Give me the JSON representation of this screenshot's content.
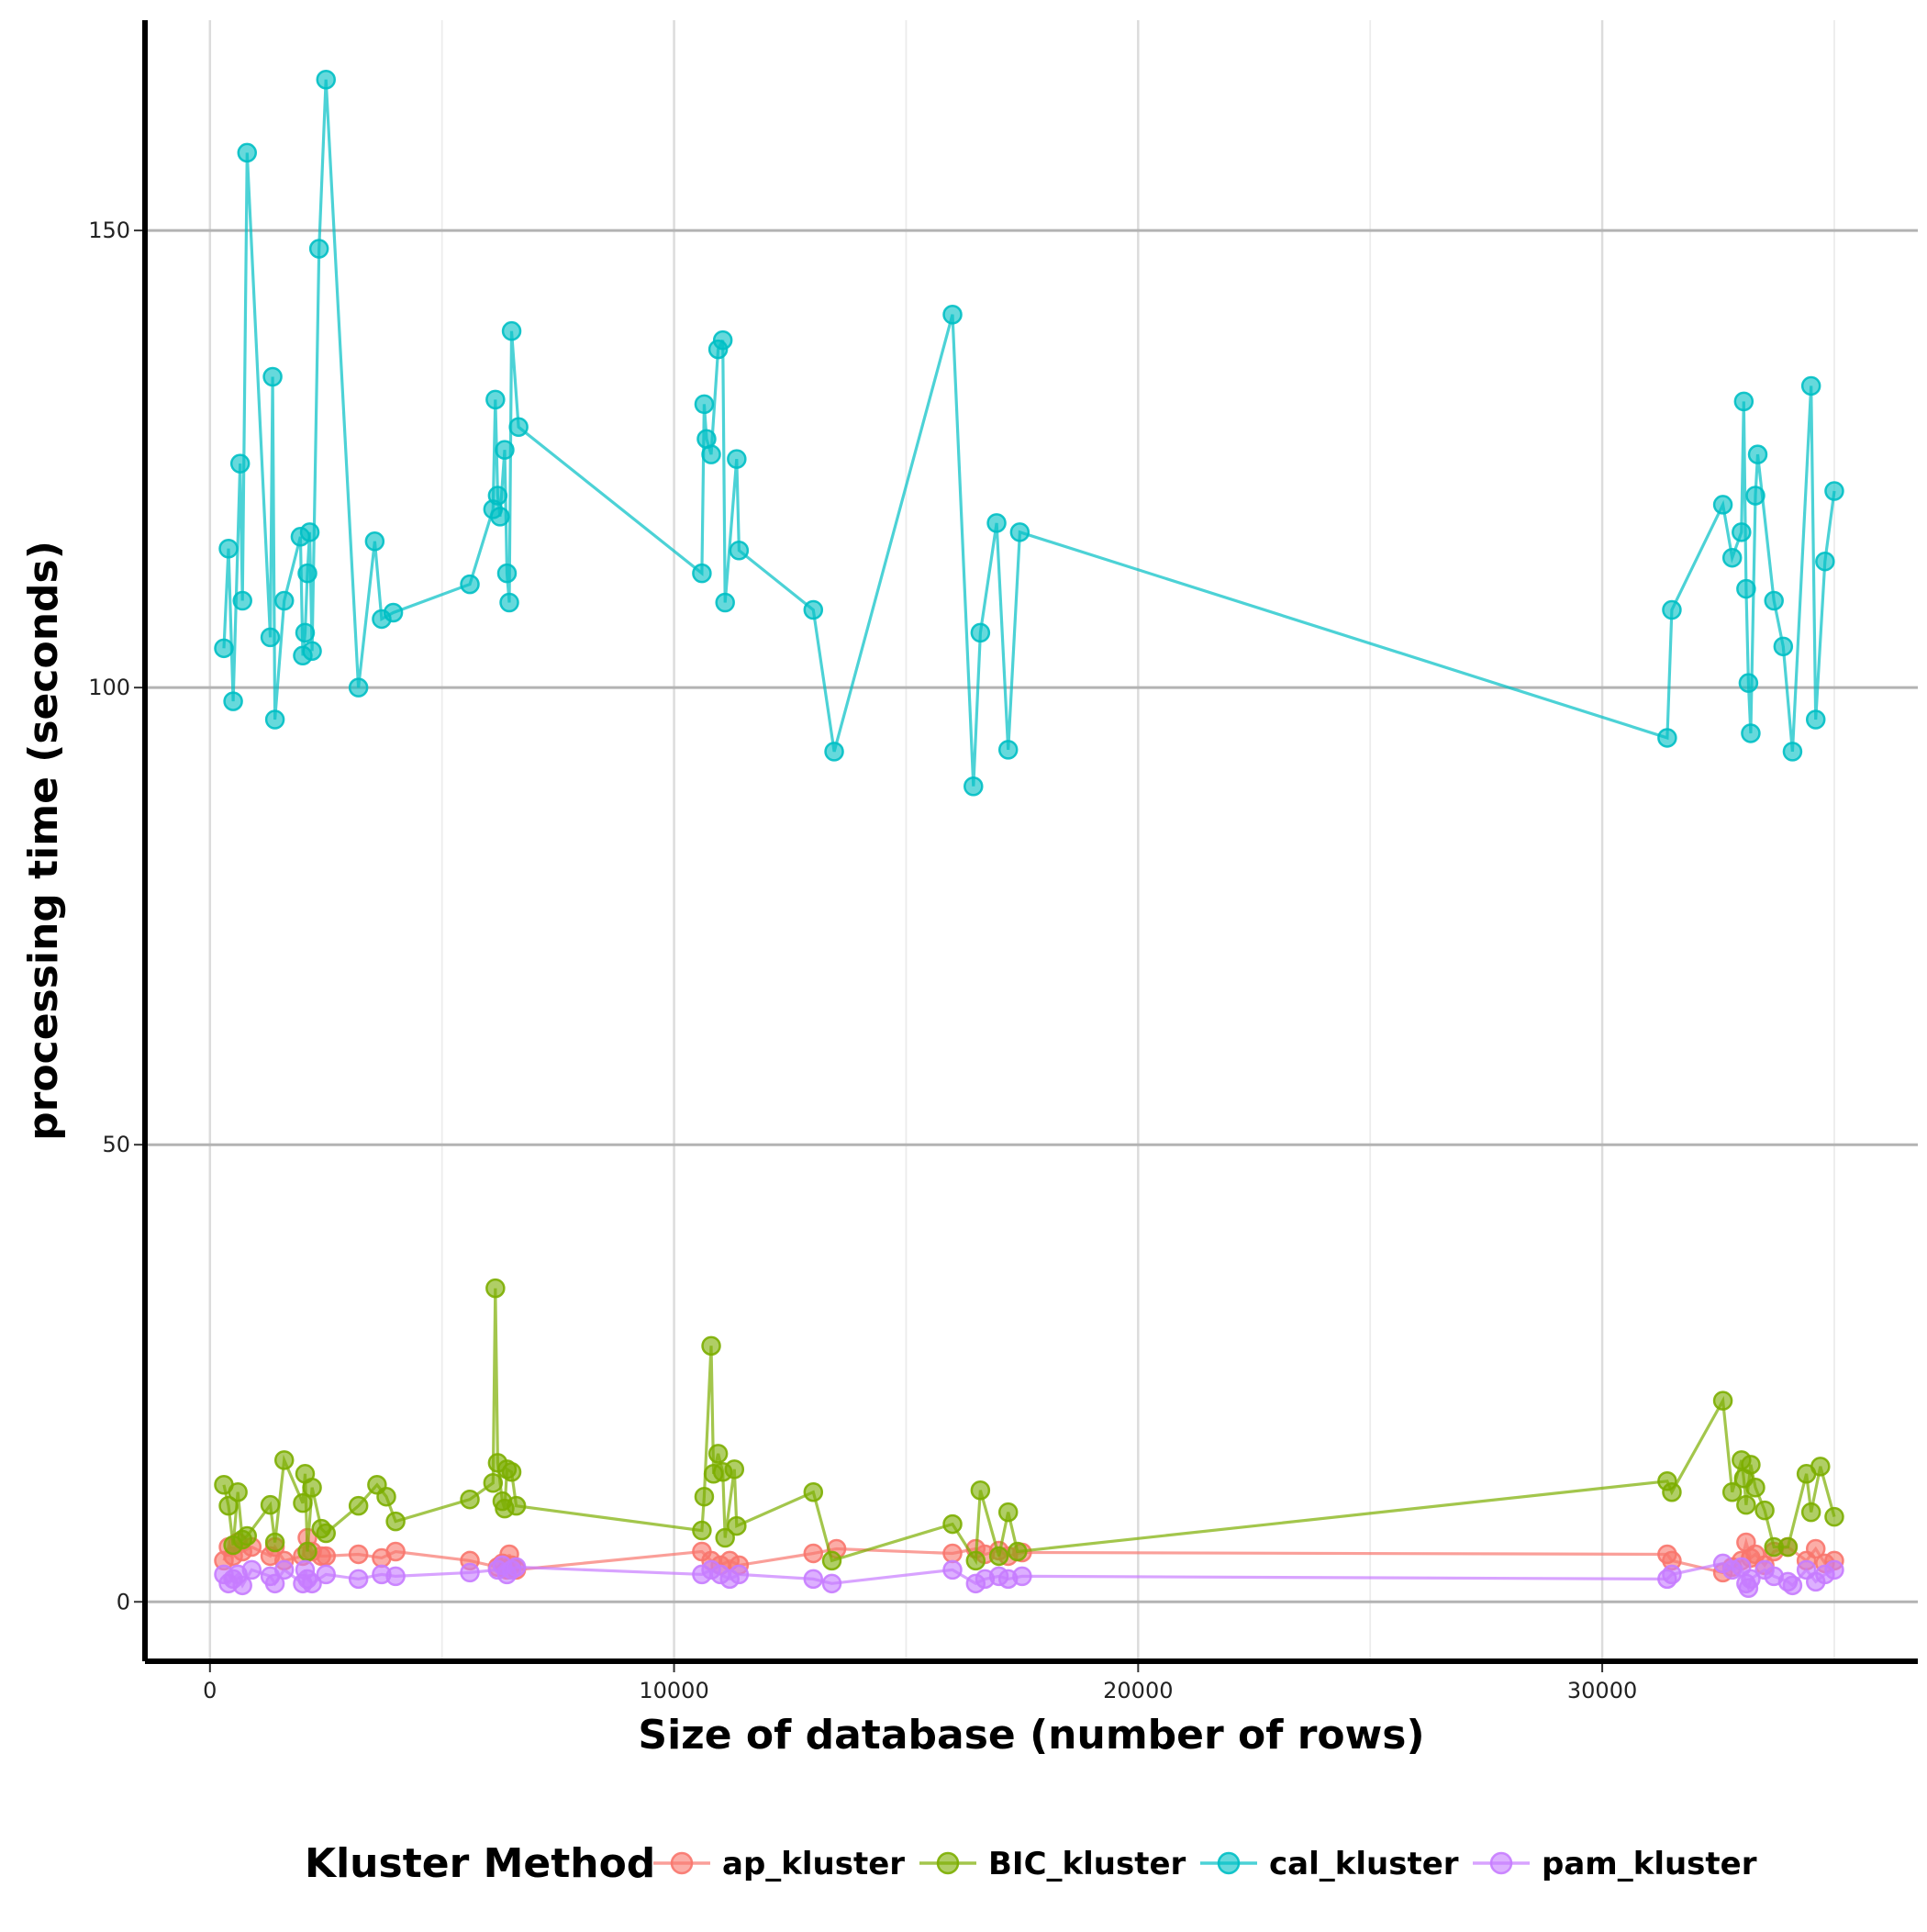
{
  "chart_data": {
    "type": "line",
    "xlabel": "Size of database (number of rows)",
    "ylabel": "processing time (seconds)",
    "xlim": [
      -1400,
      36800
    ],
    "ylim": [
      -6.5,
      173
    ],
    "x_ticks": [
      0,
      10000,
      20000,
      30000
    ],
    "y_ticks": [
      0,
      50,
      100,
      150
    ],
    "grid": true,
    "legend": {
      "title": "Kluster Method",
      "position": "bottom"
    },
    "series": [
      {
        "name": "ap_kluster",
        "color": "#F8766D",
        "points": [
          [
            300,
            4.5
          ],
          [
            400,
            6
          ],
          [
            500,
            5
          ],
          [
            600,
            6.5
          ],
          [
            700,
            5.5
          ],
          [
            900,
            6
          ],
          [
            1300,
            5
          ],
          [
            1400,
            6
          ],
          [
            1600,
            4.5
          ],
          [
            2000,
            5
          ],
          [
            2100,
            7
          ],
          [
            2200,
            5.5
          ],
          [
            2400,
            5
          ],
          [
            2500,
            5
          ],
          [
            3200,
            5.2
          ],
          [
            3700,
            4.8
          ],
          [
            4000,
            5.5
          ],
          [
            5600,
            4.5
          ],
          [
            6200,
            3.8
          ],
          [
            6300,
            4.2
          ],
          [
            6400,
            3.5
          ],
          [
            6450,
            5.2
          ],
          [
            6500,
            4
          ],
          [
            6600,
            3.5
          ],
          [
            10600,
            5.5
          ],
          [
            10800,
            4.5
          ],
          [
            11000,
            4
          ],
          [
            11200,
            4.5
          ],
          [
            11400,
            4
          ],
          [
            13000,
            5.3
          ],
          [
            13500,
            5.8
          ],
          [
            16000,
            5.3
          ],
          [
            16500,
            5.8
          ],
          [
            16700,
            5.2
          ],
          [
            17000,
            5.6
          ],
          [
            17200,
            5
          ],
          [
            17500,
            5.4
          ],
          [
            31400,
            5.2
          ],
          [
            31500,
            4.5
          ],
          [
            32600,
            3.2
          ],
          [
            32800,
            3.8
          ],
          [
            33000,
            4.5
          ],
          [
            33100,
            6.5
          ],
          [
            33200,
            4.8
          ],
          [
            33300,
            5.2
          ],
          [
            33500,
            4
          ],
          [
            33700,
            5.5
          ],
          [
            34000,
            6
          ],
          [
            34400,
            4.5
          ],
          [
            34600,
            5.8
          ],
          [
            34800,
            4.2
          ],
          [
            35000,
            4.5
          ]
        ]
      },
      {
        "name": "BIC_kluster",
        "color": "#7CAE00",
        "points": [
          [
            300,
            12.8
          ],
          [
            400,
            10.5
          ],
          [
            500,
            6.2
          ],
          [
            600,
            12
          ],
          [
            700,
            6.8
          ],
          [
            800,
            7.2
          ],
          [
            1300,
            10.6
          ],
          [
            1400,
            6.5
          ],
          [
            1600,
            15.5
          ],
          [
            2000,
            10.8
          ],
          [
            2050,
            14
          ],
          [
            2100,
            5.5
          ],
          [
            2200,
            12.5
          ],
          [
            2400,
            8
          ],
          [
            2500,
            7.5
          ],
          [
            3200,
            10.5
          ],
          [
            3600,
            12.8
          ],
          [
            3800,
            11.5
          ],
          [
            4000,
            8.8
          ],
          [
            5600,
            11.2
          ],
          [
            6100,
            13
          ],
          [
            6150,
            34.3
          ],
          [
            6200,
            15.2
          ],
          [
            6300,
            11
          ],
          [
            6350,
            10.2
          ],
          [
            6400,
            14.5
          ],
          [
            6500,
            14.2
          ],
          [
            6600,
            10.5
          ],
          [
            10600,
            7.8
          ],
          [
            10650,
            11.5
          ],
          [
            10800,
            28
          ],
          [
            10850,
            14
          ],
          [
            10950,
            16.2
          ],
          [
            11050,
            14.2
          ],
          [
            11100,
            7
          ],
          [
            11300,
            14.5
          ],
          [
            11350,
            8.3
          ],
          [
            13000,
            12
          ],
          [
            13400,
            4.5
          ],
          [
            16000,
            8.5
          ],
          [
            16500,
            4.5
          ],
          [
            16600,
            12.2
          ],
          [
            17000,
            5
          ],
          [
            17200,
            9.8
          ],
          [
            17400,
            5.5
          ],
          [
            31400,
            13.2
          ],
          [
            31500,
            12
          ],
          [
            32600,
            22
          ],
          [
            32800,
            12
          ],
          [
            33000,
            15.5
          ],
          [
            33050,
            13.5
          ],
          [
            33100,
            10.6
          ],
          [
            33200,
            15
          ],
          [
            33300,
            12.5
          ],
          [
            33500,
            10
          ],
          [
            33700,
            6
          ],
          [
            34000,
            6
          ],
          [
            34400,
            14
          ],
          [
            34500,
            9.8
          ],
          [
            34700,
            14.8
          ],
          [
            35000,
            9.3
          ]
        ]
      },
      {
        "name": "cal_kluster",
        "color": "#00BFC4",
        "points": [
          [
            300,
            104.3
          ],
          [
            400,
            115.2
          ],
          [
            500,
            98.5
          ],
          [
            650,
            124.5
          ],
          [
            700,
            109.5
          ],
          [
            800,
            158.5
          ],
          [
            1300,
            105.5
          ],
          [
            1350,
            134
          ],
          [
            1400,
            96.5
          ],
          [
            1600,
            109.5
          ],
          [
            1950,
            116.5
          ],
          [
            2000,
            103.5
          ],
          [
            2050,
            106
          ],
          [
            2100,
            112.5
          ],
          [
            2150,
            117
          ],
          [
            2200,
            104
          ],
          [
            2350,
            148
          ],
          [
            2500,
            166.5
          ],
          [
            3200,
            100
          ],
          [
            3550,
            116
          ],
          [
            3700,
            107.5
          ],
          [
            3950,
            108.2
          ],
          [
            5600,
            111.3
          ],
          [
            6100,
            119.5
          ],
          [
            6150,
            131.5
          ],
          [
            6200,
            121
          ],
          [
            6250,
            118.7
          ],
          [
            6350,
            126
          ],
          [
            6400,
            112.5
          ],
          [
            6450,
            109.3
          ],
          [
            6500,
            139
          ],
          [
            6650,
            128.5
          ],
          [
            10600,
            112.5
          ],
          [
            10650,
            131
          ],
          [
            10700,
            127.2
          ],
          [
            10800,
            125.5
          ],
          [
            10950,
            137
          ],
          [
            11050,
            138
          ],
          [
            11100,
            109.3
          ],
          [
            11350,
            125
          ],
          [
            11400,
            115
          ],
          [
            13000,
            108.5
          ],
          [
            13450,
            93
          ],
          [
            16000,
            140.8
          ],
          [
            16450,
            89.2
          ],
          [
            16600,
            106
          ],
          [
            16950,
            118
          ],
          [
            17200,
            93.2
          ],
          [
            17450,
            117
          ],
          [
            31400,
            94.5
          ],
          [
            31500,
            108.5
          ],
          [
            32600,
            120
          ],
          [
            32800,
            114.2
          ],
          [
            33000,
            117
          ],
          [
            33050,
            131.3
          ],
          [
            33100,
            110.8
          ],
          [
            33150,
            100.5
          ],
          [
            33200,
            95
          ],
          [
            33300,
            121
          ],
          [
            33350,
            125.5
          ],
          [
            33700,
            109.5
          ],
          [
            33900,
            104.5
          ],
          [
            34100,
            93
          ],
          [
            34500,
            133
          ],
          [
            34600,
            96.5
          ],
          [
            34800,
            113.8
          ],
          [
            35000,
            121.5
          ]
        ]
      },
      {
        "name": "pam_kluster",
        "color": "#C77CFF",
        "points": [
          [
            300,
            3
          ],
          [
            400,
            2
          ],
          [
            500,
            2.5
          ],
          [
            600,
            3
          ],
          [
            700,
            1.8
          ],
          [
            900,
            3.5
          ],
          [
            1300,
            2.8
          ],
          [
            1400,
            2
          ],
          [
            1600,
            3.5
          ],
          [
            2000,
            2
          ],
          [
            2050,
            3.5
          ],
          [
            2100,
            2.5
          ],
          [
            2200,
            2
          ],
          [
            2500,
            3
          ],
          [
            3200,
            2.5
          ],
          [
            3700,
            3
          ],
          [
            4000,
            2.8
          ],
          [
            5600,
            3.2
          ],
          [
            6200,
            3.5
          ],
          [
            6300,
            4
          ],
          [
            6400,
            3
          ],
          [
            6500,
            3.5
          ],
          [
            6600,
            3.8
          ],
          [
            10600,
            3
          ],
          [
            10800,
            3.5
          ],
          [
            11000,
            3
          ],
          [
            11200,
            2.5
          ],
          [
            11400,
            3
          ],
          [
            13000,
            2.5
          ],
          [
            13400,
            2
          ],
          [
            16000,
            3.5
          ],
          [
            16500,
            2
          ],
          [
            16700,
            2.5
          ],
          [
            17000,
            2.8
          ],
          [
            17200,
            2.5
          ],
          [
            17500,
            2.8
          ],
          [
            31400,
            2.5
          ],
          [
            31500,
            3
          ],
          [
            32600,
            4.2
          ],
          [
            32800,
            3.5
          ],
          [
            33000,
            3.8
          ],
          [
            33100,
            2
          ],
          [
            33150,
            1.5
          ],
          [
            33200,
            2.5
          ],
          [
            33500,
            3.5
          ],
          [
            33700,
            2.8
          ],
          [
            34000,
            2.2
          ],
          [
            34100,
            1.8
          ],
          [
            34400,
            3.5
          ],
          [
            34600,
            2.2
          ],
          [
            34800,
            3
          ],
          [
            35000,
            3.5
          ]
        ]
      }
    ]
  }
}
